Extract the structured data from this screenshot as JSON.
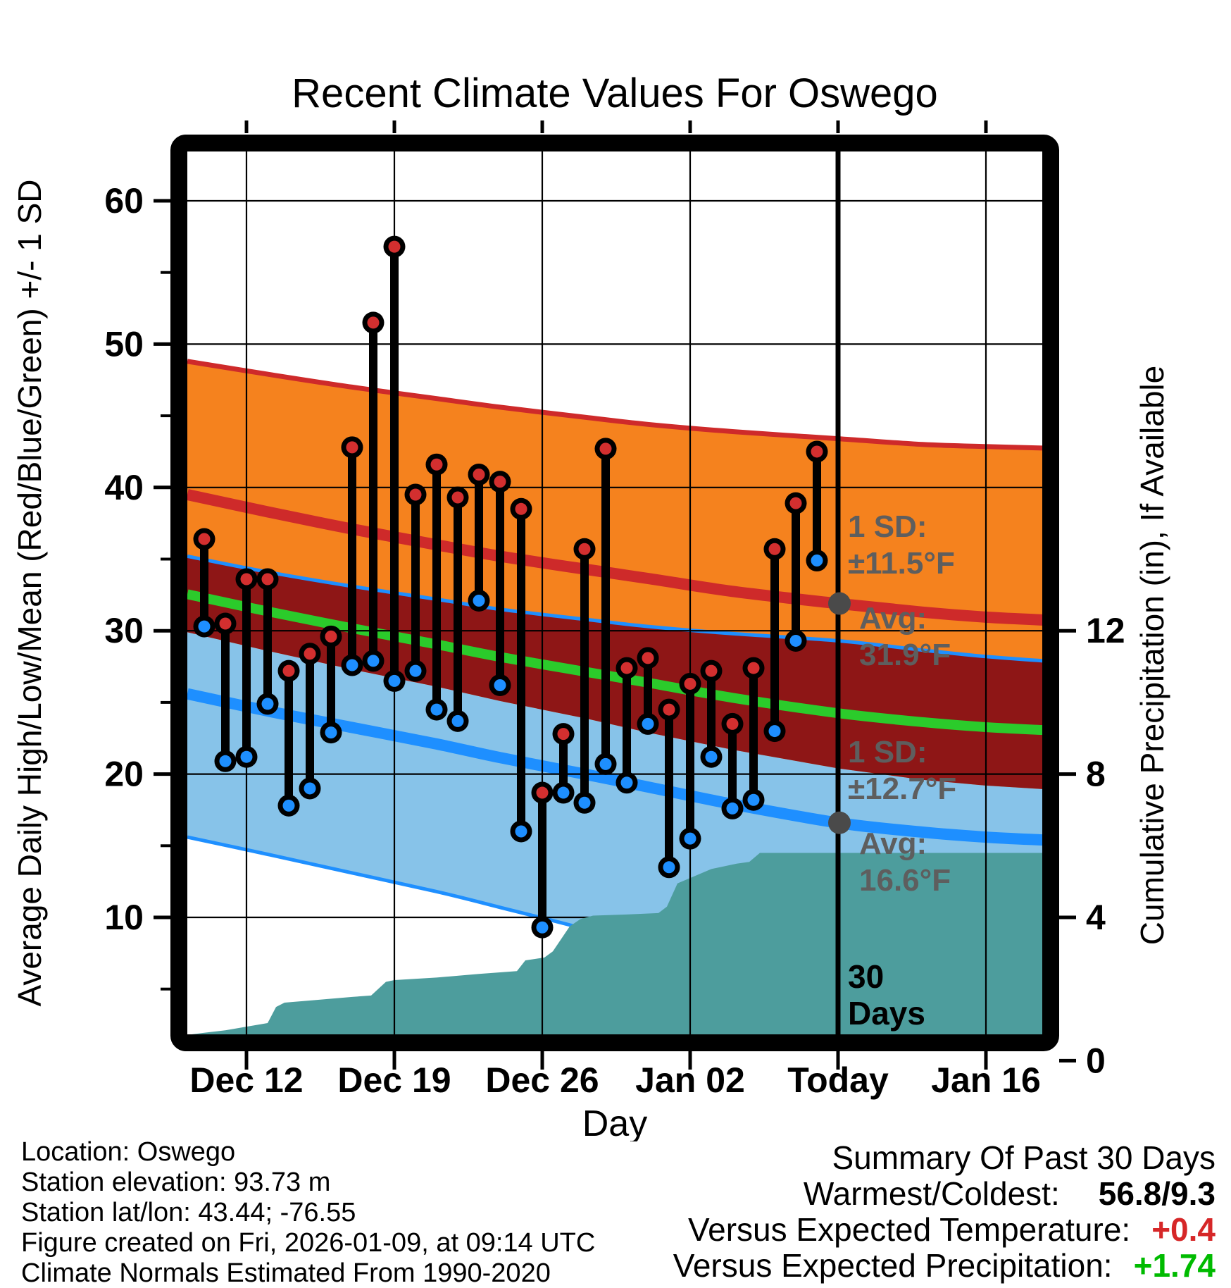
{
  "colors": {
    "orange_band": "#F5821E",
    "maroon_overlap": "#8E1616",
    "lightblue_band": "#87C3E9",
    "red_line": "#CE2A2A",
    "blue_line": "#1E8FFF",
    "green_line": "#2BCB2B",
    "teal_precip": "#4D9D9D",
    "red_dot": "#D32F2F",
    "blue_dot": "#1E8FFF",
    "gray_annotation": "#5E5E5E",
    "temp_delta_color": "#D62728",
    "precip_delta_color": "#00BB00",
    "black": "#000000"
  },
  "chart_data": {
    "type": "climate-stems-bands-area",
    "title": "Recent Climate Values For Oswego",
    "xlabel": "Day",
    "ylabel_left": "Average Daily High/Low/Mean (Red/Blue/Green) +/- 1 SD",
    "ylabel_right": "Cumulative Precipitation (in), If Available",
    "x_ticks": [
      {
        "d": 2,
        "label": "Dec 12"
      },
      {
        "d": 9,
        "label": "Dec 19"
      },
      {
        "d": 16,
        "label": "Dec 26"
      },
      {
        "d": 23,
        "label": "Jan 02"
      },
      {
        "d": 30,
        "label": "Today"
      },
      {
        "d": 37,
        "label": "Jan 16"
      }
    ],
    "today_d": 30,
    "y_left_majors": [
      10,
      20,
      30,
      40,
      50,
      60
    ],
    "y_left_minors": [
      5,
      15,
      25,
      35,
      45,
      55
    ],
    "y_right_majors": [
      {
        "p": 0,
        "label": "0"
      },
      {
        "p": 4,
        "label": "4"
      },
      {
        "p": 8,
        "label": "8"
      },
      {
        "p": 12,
        "label": "12"
      }
    ],
    "bands": {
      "d": [
        -0.8,
        3,
        7,
        11,
        14,
        18,
        21,
        25,
        30,
        34,
        37,
        39.7
      ],
      "high_plus_sd": [
        48.8,
        47.9,
        47.0,
        46.2,
        45.6,
        44.9,
        44.4,
        43.9,
        43.4,
        43.0,
        42.85,
        42.75
      ],
      "avg_high": [
        39.5,
        38.3,
        37.1,
        36.0,
        35.2,
        34.3,
        33.65,
        32.75,
        31.9,
        31.3,
        30.95,
        30.75
      ],
      "high_minus_sd": [
        29.9,
        28.6,
        27.3,
        26.1,
        25.1,
        23.9,
        22.9,
        21.7,
        20.4,
        19.6,
        19.2,
        18.95
      ],
      "low_plus_sd": [
        35.2,
        34.1,
        33.1,
        32.2,
        31.5,
        30.8,
        30.3,
        29.8,
        29.3,
        28.65,
        28.2,
        27.9
      ],
      "avg_low": [
        25.6,
        24.4,
        23.25,
        22.1,
        21.15,
        20.0,
        19.1,
        17.9,
        16.6,
        15.95,
        15.6,
        15.4
      ],
      "low_minus_sd": [
        15.6,
        14.4,
        13.1,
        11.8,
        10.7,
        9.2,
        7.9,
        6.1,
        3.9,
        3.25,
        2.95,
        2.8
      ]
    },
    "daily": [
      {
        "date": "Dec 10",
        "d": 0,
        "high": 36.4,
        "low": 30.3
      },
      {
        "date": "Dec 11",
        "d": 1,
        "high": 30.5,
        "low": 20.9
      },
      {
        "date": "Dec 12",
        "d": 2,
        "high": 33.6,
        "low": 21.2
      },
      {
        "date": "Dec 13",
        "d": 3,
        "high": 33.6,
        "low": 24.9
      },
      {
        "date": "Dec 14",
        "d": 4,
        "high": 27.2,
        "low": 17.8
      },
      {
        "date": "Dec 15",
        "d": 5,
        "high": 28.4,
        "low": 19.0
      },
      {
        "date": "Dec 16",
        "d": 6,
        "high": 29.6,
        "low": 22.9
      },
      {
        "date": "Dec 17",
        "d": 7,
        "high": 42.8,
        "low": 27.6
      },
      {
        "date": "Dec 18",
        "d": 8,
        "high": 51.5,
        "low": 27.9
      },
      {
        "date": "Dec 19",
        "d": 9,
        "high": 56.8,
        "low": 26.5
      },
      {
        "date": "Dec 20",
        "d": 10,
        "high": 39.5,
        "low": 27.2
      },
      {
        "date": "Dec 21",
        "d": 11,
        "high": 41.6,
        "low": 24.5
      },
      {
        "date": "Dec 22",
        "d": 12,
        "high": 39.3,
        "low": 23.7
      },
      {
        "date": "Dec 23",
        "d": 13,
        "high": 40.9,
        "low": 32.1
      },
      {
        "date": "Dec 24",
        "d": 14,
        "high": 40.4,
        "low": 26.2
      },
      {
        "date": "Dec 25",
        "d": 15,
        "high": 38.5,
        "low": 16.0
      },
      {
        "date": "Dec 26",
        "d": 16,
        "high": 18.7,
        "low": 9.3
      },
      {
        "date": "Dec 27",
        "d": 17,
        "high": 22.8,
        "low": 18.7
      },
      {
        "date": "Dec 28",
        "d": 18,
        "high": 35.7,
        "low": 18.0
      },
      {
        "date": "Dec 29",
        "d": 19,
        "high": 42.7,
        "low": 20.7
      },
      {
        "date": "Dec 30",
        "d": 20,
        "high": 27.4,
        "low": 19.4
      },
      {
        "date": "Dec 31",
        "d": 21,
        "high": 28.1,
        "low": 23.5
      },
      {
        "date": "Jan 01",
        "d": 22,
        "high": 24.5,
        "low": 13.5
      },
      {
        "date": "Jan 02",
        "d": 23,
        "high": 26.3,
        "low": 15.5
      },
      {
        "date": "Jan 03",
        "d": 24,
        "high": 27.2,
        "low": 21.2
      },
      {
        "date": "Jan 04",
        "d": 25,
        "high": 23.5,
        "low": 17.6
      },
      {
        "date": "Jan 05",
        "d": 26,
        "high": 27.4,
        "low": 18.2
      },
      {
        "date": "Jan 06",
        "d": 27,
        "high": 35.7,
        "low": 23.0
      },
      {
        "date": "Jan 07",
        "d": 28,
        "high": 38.9,
        "low": 29.3
      },
      {
        "date": "Jan 08",
        "d": 29,
        "high": 42.5,
        "low": 34.9
      }
    ],
    "precip": [
      [
        -0.8,
        0.72
      ],
      [
        0,
        0.78
      ],
      [
        1,
        0.85
      ],
      [
        2,
        0.95
      ],
      [
        3,
        1.05
      ],
      [
        3.4,
        1.5
      ],
      [
        3.8,
        1.62
      ],
      [
        5,
        1.68
      ],
      [
        7,
        1.78
      ],
      [
        7.9,
        1.82
      ],
      [
        8.6,
        2.2
      ],
      [
        9,
        2.25
      ],
      [
        11,
        2.32
      ],
      [
        13,
        2.42
      ],
      [
        14.8,
        2.5
      ],
      [
        15.2,
        2.8
      ],
      [
        16.1,
        2.88
      ],
      [
        16.5,
        3.05
      ],
      [
        17.3,
        3.75
      ],
      [
        17.8,
        3.95
      ],
      [
        18.4,
        4.05
      ],
      [
        20,
        4.08
      ],
      [
        21.5,
        4.12
      ],
      [
        21.9,
        4.3
      ],
      [
        22.4,
        4.95
      ],
      [
        23,
        5.1
      ],
      [
        24,
        5.35
      ],
      [
        25.2,
        5.5
      ],
      [
        25.8,
        5.55
      ],
      [
        26.3,
        5.8
      ],
      [
        39.7,
        5.8
      ]
    ],
    "annotations": {
      "high": {
        "sd_label": "1 SD:",
        "sd_value": "±11.5°F",
        "avg_label": "Avg:",
        "avg_value": "31.9°F",
        "dot_t": 31.9
      },
      "low": {
        "sd_label": "1 SD:",
        "sd_value": "±12.7°F",
        "avg_label": "Avg:",
        "avg_value": "16.6°F",
        "dot_t": 16.6
      },
      "window_line1": "30",
      "window_line2": "Days"
    }
  },
  "footer": {
    "lines": [
      "Location: Oswego",
      "Station elevation: 93.73 m",
      "Station lat/lon: 43.44; -76.55",
      "Figure created on Fri, 2026-01-09, at 09:14 UTC",
      "Climate Normals Estimated From 1990-2020"
    ]
  },
  "summary": {
    "title": "Summary Of Past 30 Days",
    "rows": [
      {
        "label": "Warmest/Coldest:",
        "value": "56.8/9.3",
        "color": "#000000"
      },
      {
        "label": "Versus Expected Temperature:",
        "value": "+0.4",
        "color": "#D62728"
      },
      {
        "label": "Versus Expected Precipitation:",
        "value": "+1.74",
        "color": "#00BB00"
      }
    ]
  }
}
